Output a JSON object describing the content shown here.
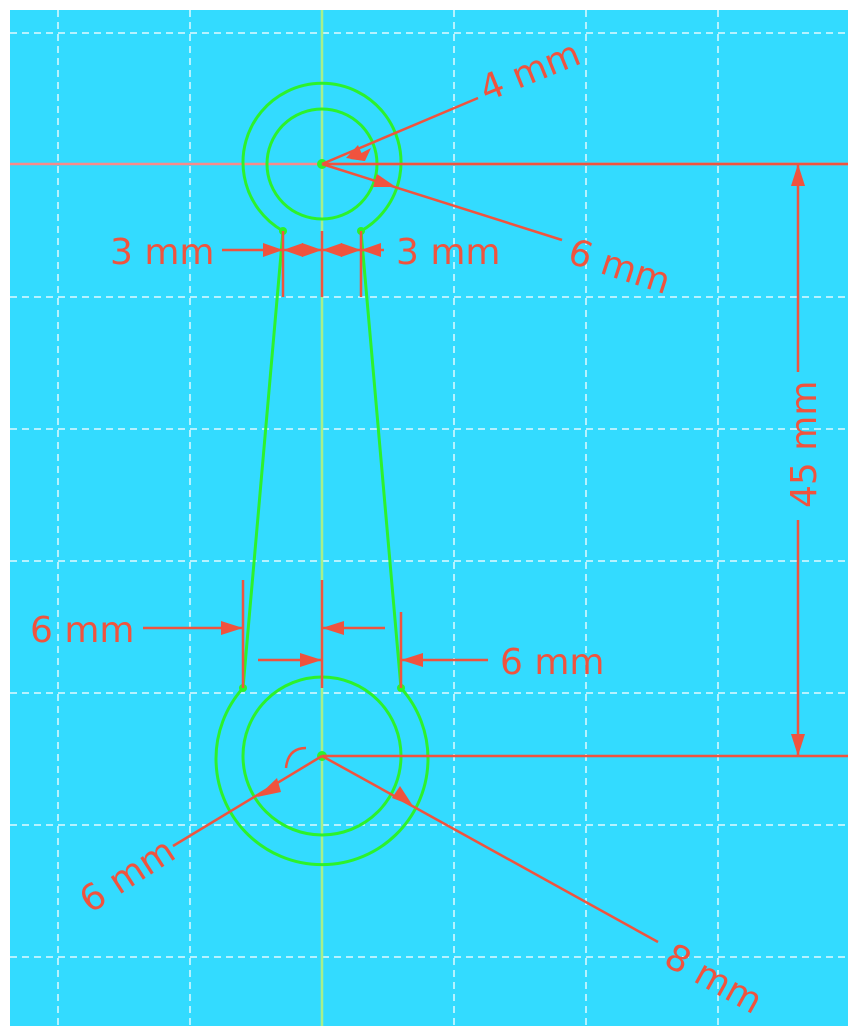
{
  "colors": {
    "background": "#33dbff",
    "grid": "#ffffff",
    "sketch": "#2cf22c",
    "constraint": "#f0533e",
    "axis_vertical": "#a6f08a",
    "axis_horizontal": "#f78a8a"
  },
  "dimensions": {
    "top_inner_radius": "4 mm",
    "top_outer_radius": "6 mm",
    "top_left_width": "3 mm",
    "top_right_width": "3 mm",
    "center_distance": "45 mm",
    "bottom_left_width": "6 mm",
    "bottom_right_width": "6 mm",
    "bottom_inner_radius": "6 mm",
    "bottom_outer_radius": "8 mm"
  }
}
